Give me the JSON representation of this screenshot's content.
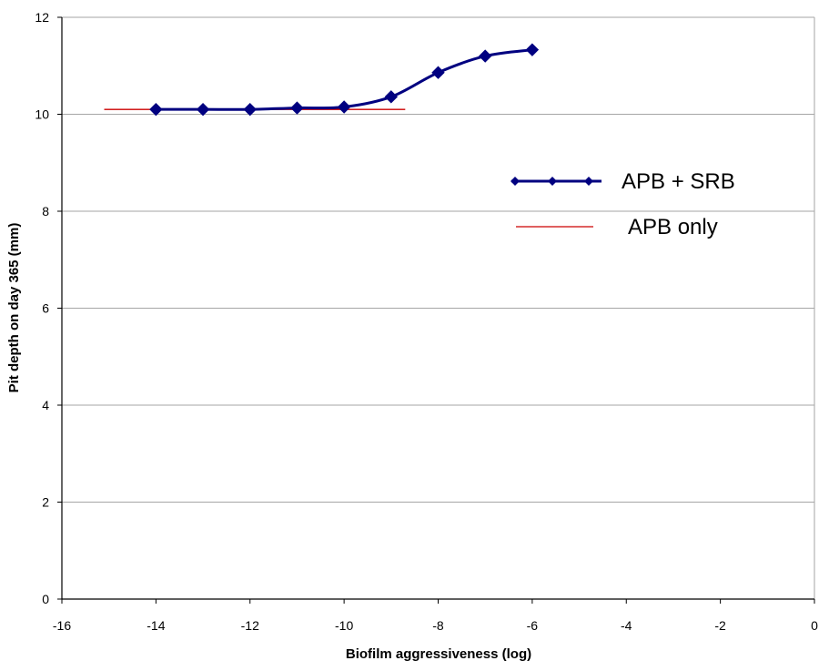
{
  "chart_data": {
    "type": "line",
    "title": "",
    "xlabel": "Biofilm aggressiveness (log)",
    "ylabel": "Pit depth on day 365 (mm)",
    "xlim": [
      -16,
      0
    ],
    "ylim": [
      0,
      12
    ],
    "x_ticks": [
      -16,
      -14,
      -12,
      -10,
      -8,
      -6,
      -4,
      -2,
      0
    ],
    "y_ticks": [
      0,
      2,
      4,
      6,
      8,
      10,
      12
    ],
    "x_tick_labels": [
      "-16",
      "-14",
      "-12",
      "-10",
      "-8",
      "-6",
      "-4",
      "-2",
      "0"
    ],
    "y_tick_labels": [
      "0",
      "2",
      "4",
      "6",
      "8",
      "10",
      "12"
    ],
    "grid": {
      "horizontal": true,
      "vertical": false
    },
    "legend_position": "right",
    "series": [
      {
        "name": "APB + SRB",
        "color": "#000080",
        "marker": "diamond",
        "smooth": true,
        "x": [
          -14,
          -13,
          -12,
          -11,
          -10,
          -9,
          -8,
          -7,
          -6
        ],
        "y": [
          10.1,
          10.1,
          10.1,
          10.13,
          10.15,
          10.36,
          10.86,
          11.2,
          11.33
        ]
      },
      {
        "name": "APB only",
        "color": "#cc0000",
        "marker": "none",
        "smooth": false,
        "x": [
          -15.1,
          -8.7
        ],
        "y": [
          10.1,
          10.1
        ]
      }
    ]
  }
}
